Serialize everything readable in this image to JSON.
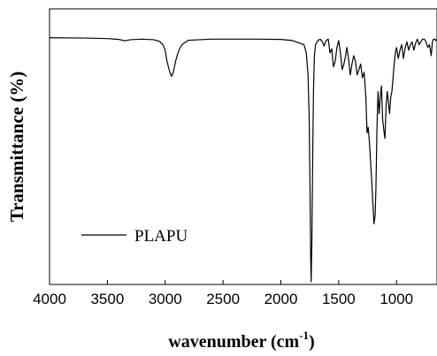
{
  "chart_data": {
    "type": "line",
    "xlabel": "wavenumber (cm",
    "xlabel_sup": "-1",
    "xlabel_close": ")",
    "ylabel": "Transmittance (%)",
    "xlim": [
      4000,
      650
    ],
    "x_reversed": true,
    "ylim": [
      0,
      100
    ],
    "y_ticks_shown": false,
    "x_ticks": [
      4000,
      3500,
      3000,
      2500,
      2000,
      1500,
      1000
    ],
    "x_tick_labels": [
      "4000",
      "3500",
      "3000",
      "2500",
      "2000",
      "1500",
      "1000"
    ],
    "grid": false,
    "legend": {
      "position": "bottom-left"
    },
    "series": [
      {
        "name": "PLAPU",
        "color": "#000000",
        "x": [
          4000,
          3700,
          3500,
          3400,
          3350,
          3300,
          3200,
          3100,
          3050,
          3020,
          3000,
          2985,
          2960,
          2945,
          2930,
          2910,
          2890,
          2870,
          2850,
          2800,
          2600,
          2400,
          2200,
          2000,
          1900,
          1800,
          1780,
          1765,
          1755,
          1748,
          1742,
          1738,
          1732,
          1725,
          1718,
          1710,
          1700,
          1680,
          1660,
          1640,
          1625,
          1610,
          1590,
          1575,
          1560,
          1545,
          1530,
          1515,
          1500,
          1485,
          1470,
          1455,
          1440,
          1430,
          1415,
          1400,
          1385,
          1370,
          1355,
          1340,
          1325,
          1310,
          1295,
          1280,
          1265,
          1255,
          1245,
          1235,
          1225,
          1215,
          1205,
          1195,
          1185,
          1178,
          1170,
          1160,
          1150,
          1140,
          1130,
          1120,
          1110,
          1100,
          1090,
          1080,
          1070,
          1060,
          1050,
          1040,
          1030,
          1020,
          1010,
          1000,
          985,
          970,
          955,
          940,
          925,
          910,
          895,
          880,
          865,
          850,
          835,
          820,
          805,
          790,
          775,
          760,
          745,
          730,
          715,
          700,
          690,
          680,
          670,
          660,
          650
        ],
        "y": [
          89.5,
          89.4,
          89.2,
          88.9,
          88.4,
          88.8,
          89.0,
          88.8,
          88.2,
          87.0,
          85.0,
          81.0,
          77.0,
          75.5,
          77.0,
          81.0,
          84.0,
          86.0,
          87.2,
          88.6,
          89.0,
          89.0,
          89.0,
          88.9,
          88.5,
          87.0,
          84.0,
          76.0,
          60.0,
          35.0,
          10.0,
          1.0,
          15.0,
          45.0,
          70.0,
          83.0,
          87.0,
          88.5,
          89.0,
          88.0,
          86.5,
          88.5,
          89.0,
          84.0,
          85.5,
          79.0,
          81.0,
          86.0,
          88.5,
          84.0,
          78.0,
          80.0,
          83.0,
          86.0,
          82.0,
          76.0,
          80.0,
          83.0,
          81.0,
          76.0,
          78.0,
          80.0,
          75.0,
          77.0,
          68.0,
          55.0,
          57.0,
          52.0,
          45.0,
          38.0,
          30.0,
          22.0,
          25.0,
          35.0,
          55.0,
          70.0,
          62.0,
          68.0,
          72.0,
          60.0,
          56.0,
          53.0,
          65.0,
          70.0,
          66.0,
          62.0,
          68.0,
          70.0,
          75.0,
          80.0,
          84.0,
          86.0,
          82.0,
          85.0,
          87.0,
          82.0,
          86.0,
          88.0,
          85.0,
          87.0,
          88.0,
          85.0,
          87.5,
          89.0,
          87.0,
          88.0,
          89.0,
          89.0,
          88.0,
          86.0,
          87.0,
          83.0,
          88.0,
          89.0,
          89.0,
          88.5,
          89.0
        ]
      }
    ]
  }
}
